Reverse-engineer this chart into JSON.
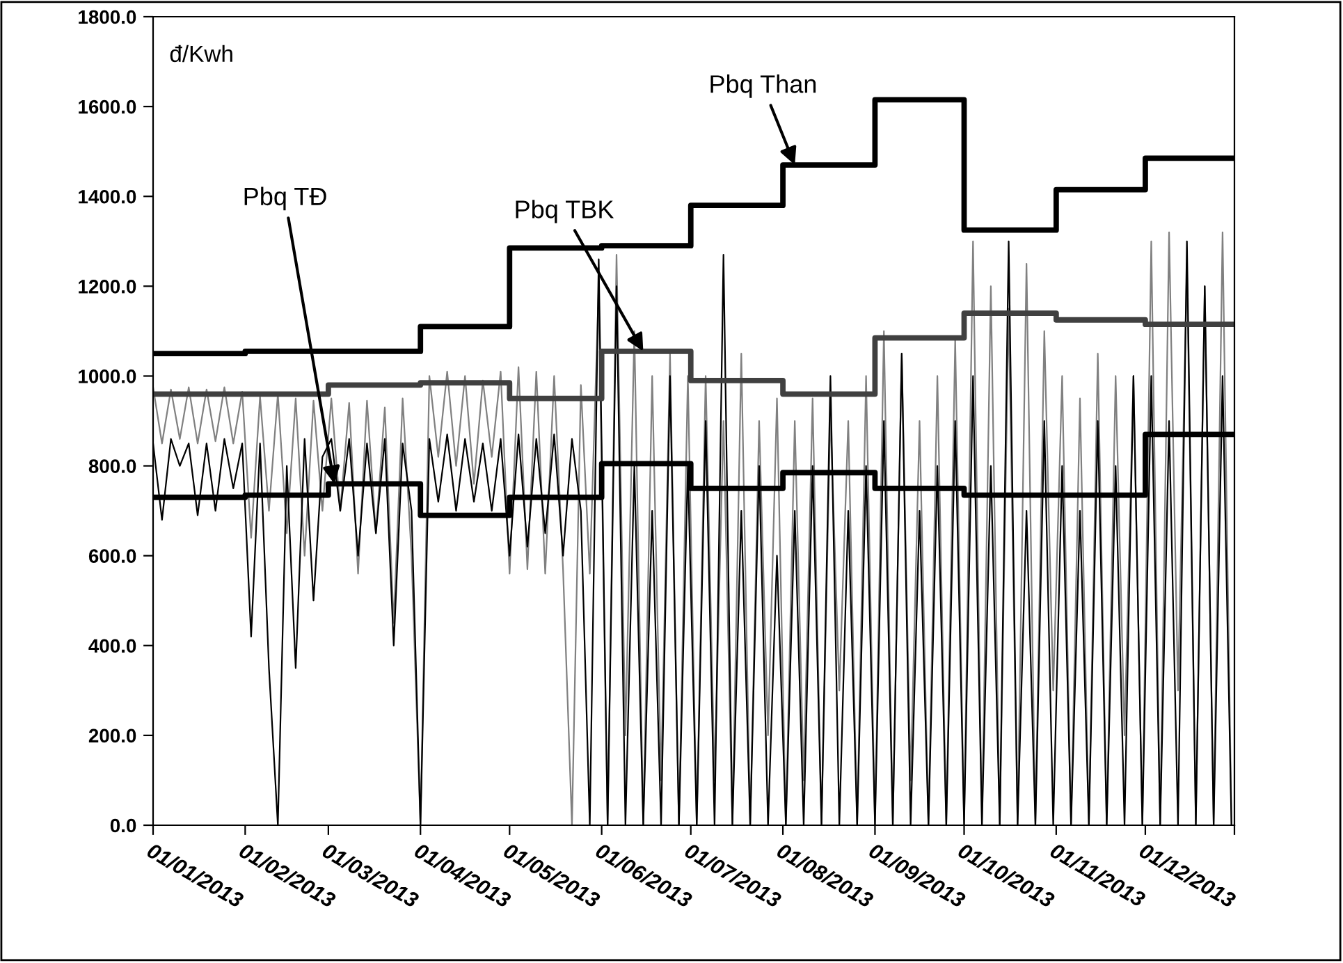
{
  "chart_data": {
    "type": "line",
    "ylabel": "đ/Kwh",
    "x": [
      "2013-01-01",
      "2013-01-04",
      "2013-01-07",
      "2013-01-10",
      "2013-01-13",
      "2013-01-16",
      "2013-01-19",
      "2013-01-22",
      "2013-01-25",
      "2013-01-28",
      "2013-01-31",
      "2013-02-03",
      "2013-02-06",
      "2013-02-09",
      "2013-02-12",
      "2013-02-15",
      "2013-02-18",
      "2013-02-21",
      "2013-02-24",
      "2013-02-27",
      "2013-03-02",
      "2013-03-05",
      "2013-03-08",
      "2013-03-11",
      "2013-03-14",
      "2013-03-17",
      "2013-03-20",
      "2013-03-23",
      "2013-03-26",
      "2013-03-29",
      "2013-04-01",
      "2013-04-04",
      "2013-04-07",
      "2013-04-10",
      "2013-04-13",
      "2013-04-16",
      "2013-04-19",
      "2013-04-22",
      "2013-04-25",
      "2013-04-28",
      "2013-05-01",
      "2013-05-04",
      "2013-05-07",
      "2013-05-10",
      "2013-05-13",
      "2013-05-16",
      "2013-05-19",
      "2013-05-22",
      "2013-05-25",
      "2013-05-28",
      "2013-05-31",
      "2013-06-03",
      "2013-06-06",
      "2013-06-09",
      "2013-06-12",
      "2013-06-15",
      "2013-06-18",
      "2013-06-21",
      "2013-06-24",
      "2013-06-27",
      "2013-06-30",
      "2013-07-03",
      "2013-07-06",
      "2013-07-09",
      "2013-07-12",
      "2013-07-15",
      "2013-07-18",
      "2013-07-21",
      "2013-07-24",
      "2013-07-27",
      "2013-07-30",
      "2013-08-02",
      "2013-08-05",
      "2013-08-08",
      "2013-08-11",
      "2013-08-14",
      "2013-08-17",
      "2013-08-20",
      "2013-08-23",
      "2013-08-26",
      "2013-08-29",
      "2013-09-01",
      "2013-09-04",
      "2013-09-07",
      "2013-09-10",
      "2013-09-13",
      "2013-09-16",
      "2013-09-19",
      "2013-09-22",
      "2013-09-25",
      "2013-09-28",
      "2013-10-01",
      "2013-10-04",
      "2013-10-07",
      "2013-10-10",
      "2013-10-13",
      "2013-10-16",
      "2013-10-19",
      "2013-10-22",
      "2013-10-25",
      "2013-10-28",
      "2013-10-31",
      "2013-11-03",
      "2013-11-06",
      "2013-11-09",
      "2013-11-12",
      "2013-11-15",
      "2013-11-18",
      "2013-11-21",
      "2013-11-24",
      "2013-11-27",
      "2013-11-30",
      "2013-12-03",
      "2013-12-06",
      "2013-12-09",
      "2013-12-12",
      "2013-12-15",
      "2013-12-18",
      "2013-12-21",
      "2013-12-24",
      "2013-12-27",
      "2013-12-30"
    ],
    "series": [
      {
        "color": "#808080",
        "values": [
          975,
          850,
          970,
          860,
          975,
          850,
          970,
          855,
          975,
          850,
          965,
          640,
          955,
          700,
          960,
          650,
          950,
          600,
          945,
          700,
          950,
          700,
          940,
          560,
          945,
          650,
          930,
          450,
          950,
          600,
          0,
          1000,
          820,
          1010,
          800,
          1000,
          760,
          990,
          820,
          1010,
          560,
          1020,
          570,
          1010,
          560,
          1000,
          570,
          0,
          980,
          560,
          1200,
          0,
          1270,
          200,
          1100,
          0,
          1000,
          100,
          1050,
          0,
          1000,
          0,
          1000,
          100,
          900,
          0,
          1050,
          0,
          900,
          200,
          950,
          0,
          900,
          100,
          950,
          0,
          920,
          300,
          900,
          0,
          1000,
          0,
          1100,
          0,
          1050,
          100,
          900,
          0,
          1000,
          0,
          1080,
          0,
          1300,
          0,
          1200,
          0,
          1150,
          0,
          1250,
          0,
          1100,
          300,
          1000,
          0,
          950,
          0,
          1050,
          0,
          1000,
          200,
          1000,
          0,
          1300,
          0,
          1320,
          300,
          1250,
          0,
          1200,
          0,
          1320,
          0
        ]
      },
      {
        "color": "#000000",
        "values": [
          850,
          680,
          860,
          800,
          850,
          690,
          850,
          700,
          860,
          750,
          850,
          420,
          850,
          350,
          0,
          800,
          350,
          860,
          500,
          820,
          860,
          700,
          860,
          600,
          850,
          650,
          860,
          400,
          850,
          700,
          0,
          860,
          720,
          870,
          700,
          860,
          720,
          850,
          700,
          860,
          600,
          870,
          620,
          860,
          650,
          870,
          600,
          860,
          700,
          0,
          1260,
          0,
          1200,
          0,
          800,
          0,
          700,
          0,
          1000,
          0,
          800,
          0,
          900,
          0,
          1270,
          0,
          700,
          0,
          800,
          0,
          600,
          0,
          700,
          0,
          800,
          0,
          1000,
          0,
          700,
          0,
          800,
          0,
          900,
          0,
          1050,
          0,
          700,
          0,
          800,
          0,
          900,
          0,
          1000,
          0,
          800,
          0,
          1300,
          0,
          700,
          0,
          900,
          0,
          800,
          0,
          700,
          0,
          900,
          0,
          800,
          0,
          1000,
          0,
          1000,
          0,
          900,
          0,
          1300,
          0,
          1200,
          0,
          1000,
          0
        ]
      },
      {
        "type": "step",
        "color": "#404040",
        "x": [
          "2013-01-01",
          "2013-02-01",
          "2013-03-01",
          "2013-04-01",
          "2013-05-01",
          "2013-06-01",
          "2013-07-01",
          "2013-08-01",
          "2013-09-01",
          "2013-10-01",
          "2013-11-01",
          "2013-12-01",
          "2013-12-31"
        ],
        "values": [
          960,
          960,
          980,
          985,
          950,
          1055,
          990,
          960,
          1085,
          1140,
          1125,
          1115,
          1115
        ]
      },
      {
        "type": "step",
        "color": "#000000",
        "x": [
          "2013-01-01",
          "2013-02-01",
          "2013-03-01",
          "2013-04-01",
          "2013-05-01",
          "2013-06-01",
          "2013-07-01",
          "2013-08-01",
          "2013-09-01",
          "2013-10-01",
          "2013-11-01",
          "2013-12-01",
          "2013-12-31"
        ],
        "values": [
          730,
          735,
          760,
          690,
          730,
          805,
          750,
          785,
          750,
          735,
          735,
          870,
          870
        ]
      },
      {
        "type": "step",
        "color": "#000000",
        "x": [
          "2013-01-01",
          "2013-02-01",
          "2013-03-01",
          "2013-04-01",
          "2013-05-01",
          "2013-06-01",
          "2013-07-01",
          "2013-08-01",
          "2013-09-01",
          "2013-10-01",
          "2013-11-01",
          "2013-12-01",
          "2013-12-31"
        ],
        "values": [
          1050,
          1055,
          1055,
          1110,
          1285,
          1290,
          1380,
          1470,
          1615,
          1325,
          1415,
          1485,
          1485
        ]
      }
    ],
    "annotations": [
      {
        "text": "Pbq TĐ",
        "x": "2013-03-03",
        "y": 760
      },
      {
        "text": "Pbq TBK",
        "x": "2013-06-15",
        "y": 1055
      },
      {
        "text": "Pbq Than",
        "x": "2013-08-05",
        "y": 1470
      }
    ],
    "xlim": [
      "2013-01-01",
      "2013-12-31"
    ],
    "xticks": [
      {
        "value": "2013-01-01",
        "label": "01/01/2013"
      },
      {
        "value": "2013-02-01",
        "label": "01/02/2013"
      },
      {
        "value": "2013-03-01",
        "label": "01/03/2013"
      },
      {
        "value": "2013-04-01",
        "label": "01/04/2013"
      },
      {
        "value": "2013-05-01",
        "label": "01/05/2013"
      },
      {
        "value": "2013-06-01",
        "label": "01/06/2013"
      },
      {
        "value": "2013-07-01",
        "label": "01/07/2013"
      },
      {
        "value": "2013-08-01",
        "label": "01/08/2013"
      },
      {
        "value": "2013-09-01",
        "label": "01/09/2013"
      },
      {
        "value": "2013-10-01",
        "label": "01/10/2013"
      },
      {
        "value": "2013-11-01",
        "label": "01/11/2013"
      },
      {
        "value": "2013-12-01",
        "label": "01/12/2013"
      },
      {
        "value": "2013-12-31",
        "label": null
      }
    ],
    "ylim": [
      0,
      1800
    ],
    "yticks": [
      {
        "value": 0,
        "label": "0.0"
      },
      {
        "value": 200,
        "label": "200.0"
      },
      {
        "value": 400,
        "label": "400.0"
      },
      {
        "value": 600,
        "label": "600.0"
      },
      {
        "value": 800,
        "label": "800.0"
      },
      {
        "value": 1000,
        "label": "1000.0"
      },
      {
        "value": 1200,
        "label": "1200.0"
      },
      {
        "value": 1400,
        "label": "1400.0"
      },
      {
        "value": 1600,
        "label": "1600.0"
      },
      {
        "value": 1800,
        "label": "1800.0"
      }
    ],
    "grid": false,
    "legend": false
  }
}
